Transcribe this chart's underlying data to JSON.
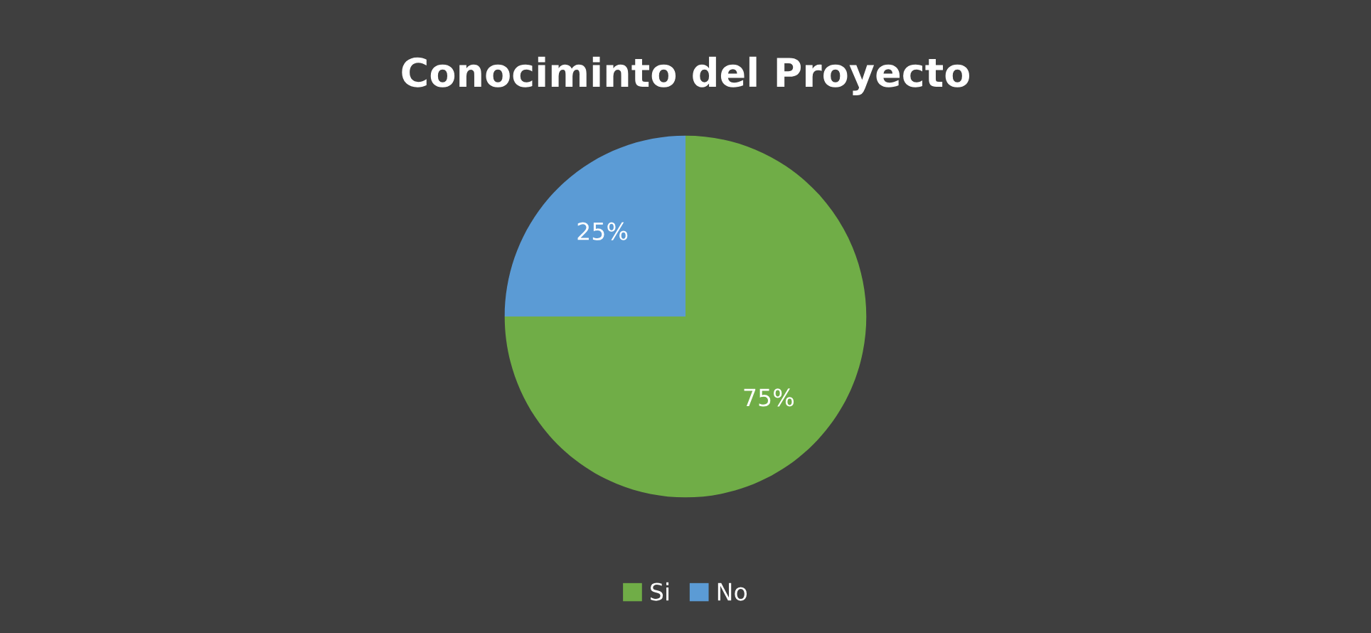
{
  "chart_data": {
    "type": "pie",
    "title": "Conociminto del Proyecto",
    "categories": [
      "Si",
      "No"
    ],
    "values": [
      75,
      25
    ],
    "colors": [
      "#70ad47",
      "#5b9bd5"
    ],
    "value_labels": [
      "75%",
      "25%"
    ],
    "legend": "bottom"
  }
}
